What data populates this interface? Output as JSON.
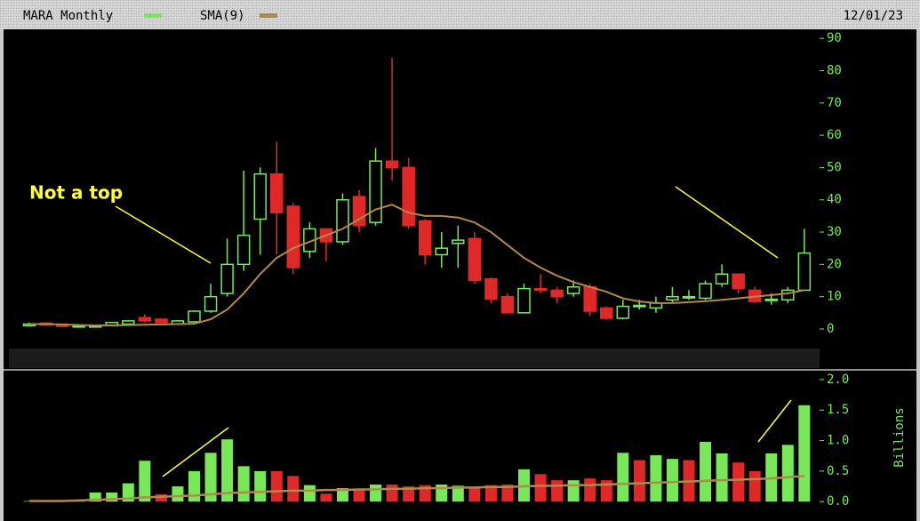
{
  "chart_data": [
    {
      "type": "candlestick",
      "title": "MARA Monthly",
      "date": "12/01/23",
      "up_color": "#78e858",
      "down_color": "#e02828",
      "open": [
        1,
        1.8,
        1.2,
        0.6,
        0.6,
        1,
        1.5,
        3.5,
        3,
        1.5,
        2.2,
        5.5,
        11,
        20,
        34,
        48,
        38,
        24,
        31,
        27,
        41,
        33,
        52,
        50,
        33.5,
        23,
        26.5,
        28,
        15.5,
        10,
        5,
        12.5,
        12,
        11,
        13,
        6.5,
        3.3,
        7,
        6.5,
        9,
        9.8,
        9.5,
        14,
        17,
        12,
        8.8,
        9,
        12
      ],
      "high": [
        2,
        2,
        1.4,
        1.2,
        1.2,
        2.2,
        2.8,
        4.5,
        3.2,
        2.8,
        5.8,
        14,
        28,
        49,
        50,
        58,
        39,
        33,
        31,
        42,
        43,
        56,
        84,
        53,
        34,
        30,
        32,
        30,
        16,
        11,
        14,
        17,
        13,
        15,
        14,
        7,
        9,
        9,
        10,
        13,
        12,
        15,
        20,
        17,
        13,
        11,
        13,
        31
      ],
      "low": [
        0.8,
        1,
        0.7,
        0.5,
        0.5,
        0.9,
        1.3,
        2,
        1.8,
        1.4,
        2,
        5,
        10,
        18,
        23,
        23,
        17,
        22,
        21,
        26,
        30,
        32,
        46,
        31,
        20,
        19,
        19,
        14,
        8,
        5,
        5,
        11,
        8,
        10,
        4,
        3,
        3,
        6,
        5,
        8,
        9,
        9,
        13,
        11,
        8,
        7.5,
        8,
        12
      ],
      "close": [
        1.5,
        1.2,
        0.8,
        1,
        1,
        2,
        2.5,
        2.5,
        2,
        2.5,
        5.5,
        10,
        20,
        29,
        48,
        36,
        19,
        31,
        27,
        40,
        32,
        52,
        50,
        32,
        23,
        25,
        27.5,
        15,
        9.3,
        5,
        12.5,
        12,
        10,
        13,
        5.5,
        3.3,
        7,
        7.3,
        8,
        10,
        10,
        14,
        17,
        12.5,
        8.5,
        9.2,
        12,
        23.5
      ],
      "series": [
        {
          "name": "SMA(9)",
          "color": "#b08a4a",
          "values": [
            1.5,
            1.5,
            1.4,
            1.2,
            1.1,
            1.1,
            1.2,
            1.3,
            1.4,
            1.5,
            1.6,
            3,
            6,
            11,
            17,
            22,
            25,
            27,
            29,
            31,
            34,
            37,
            38.5,
            36,
            35,
            35,
            34.5,
            33,
            30,
            26,
            22,
            19,
            16.5,
            14.5,
            13,
            11.5,
            9.5,
            8.5,
            8,
            8,
            8.3,
            8.6,
            9,
            9.5,
            10,
            10.5,
            11,
            12
          ]
        }
      ],
      "annotation": "Not a top",
      "ylim": [
        -12.4,
        92.8
      ],
      "yticks": [
        0,
        10,
        20,
        30,
        40,
        50,
        60,
        70,
        80,
        90
      ]
    },
    {
      "type": "bar",
      "ylabel": "Billions",
      "values": [
        0.01,
        0.01,
        0.01,
        0.02,
        0.15,
        0.15,
        0.3,
        0.67,
        0.12,
        0.25,
        0.5,
        0.8,
        1.02,
        0.58,
        0.5,
        0.5,
        0.42,
        0.27,
        0.13,
        0.22,
        0.2,
        0.28,
        0.28,
        0.25,
        0.27,
        0.28,
        0.26,
        0.22,
        0.27,
        0.28,
        0.53,
        0.45,
        0.35,
        0.35,
        0.38,
        0.35,
        0.8,
        0.68,
        0.76,
        0.7,
        0.68,
        0.98,
        0.79,
        0.64,
        0.5,
        0.79,
        0.93,
        1.58
      ],
      "colors": [
        "#78e858",
        "#78e858",
        "#78e858",
        "#78e858",
        "#78e858",
        "#78e858",
        "#78e858",
        "#78e858",
        "#e02828",
        "#78e858",
        "#78e858",
        "#78e858",
        "#78e858",
        "#78e858",
        "#78e858",
        "#e02828",
        "#e02828",
        "#78e858",
        "#e02828",
        "#78e858",
        "#e02828",
        "#78e858",
        "#e02828",
        "#e02828",
        "#e02828",
        "#78e858",
        "#78e858",
        "#e02828",
        "#e02828",
        "#e02828",
        "#78e858",
        "#e02828",
        "#e02828",
        "#78e858",
        "#e02828",
        "#e02828",
        "#78e858",
        "#e02828",
        "#78e858",
        "#78e858",
        "#e02828",
        "#78e858",
        "#78e858",
        "#e02828",
        "#e02828",
        "#78e858",
        "#78e858",
        "#78e858"
      ],
      "series": [
        {
          "color": "#b08a4a",
          "values": [
            0.01,
            0.01,
            0.01,
            0.02,
            0.03,
            0.04,
            0.05,
            0.07,
            0.08,
            0.09,
            0.1,
            0.12,
            0.14,
            0.15,
            0.16,
            0.17,
            0.18,
            0.18,
            0.19,
            0.19,
            0.2,
            0.2,
            0.21,
            0.21,
            0.22,
            0.22,
            0.23,
            0.23,
            0.24,
            0.24,
            0.25,
            0.26,
            0.26,
            0.27,
            0.27,
            0.28,
            0.29,
            0.3,
            0.31,
            0.32,
            0.33,
            0.34,
            0.35,
            0.36,
            0.37,
            0.38,
            0.4,
            0.42
          ]
        }
      ],
      "ylim": [
        -0.23,
        2.13
      ],
      "yticks": [
        {
          "value": 0,
          "label": "0.0"
        },
        {
          "value": 0.5,
          "label": "0.5"
        },
        {
          "value": 1,
          "label": "1.0"
        },
        {
          "value": 1.5,
          "label": "1.5"
        },
        {
          "value": 2,
          "label": "2.0"
        }
      ]
    }
  ]
}
